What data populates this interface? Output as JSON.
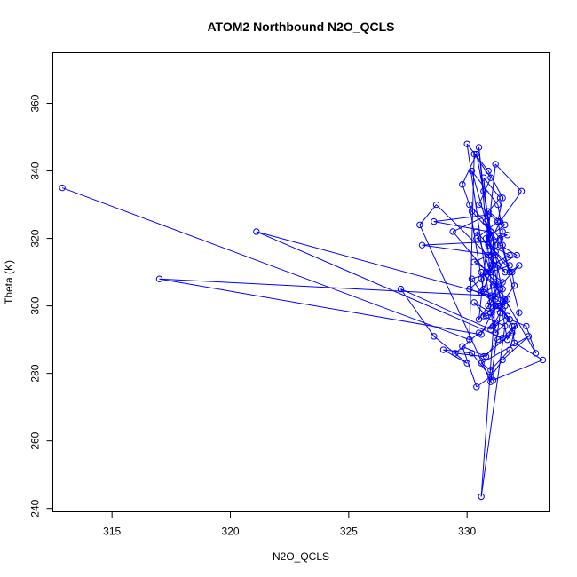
{
  "chart_data": {
    "type": "line",
    "title": "ATOM2 Northbound N2O_QCLS",
    "xlabel": "N2O_QCLS",
    "ylabel": "Theta (K)",
    "xlim": [
      312.5,
      333.5
    ],
    "ylim": [
      239,
      375
    ],
    "xticks": [
      315,
      320,
      325,
      330
    ],
    "yticks": [
      240,
      260,
      280,
      300,
      320,
      340,
      360
    ],
    "series": [
      {
        "color": "#0000ff",
        "marker": "open-circle",
        "x": [
          312.9,
          330.1,
          330.3,
          331.0,
          330.5,
          331.3,
          331.5,
          331.8,
          332.2,
          331.0,
          317.0,
          330.6,
          331.2,
          331.8,
          332.5,
          332.9,
          331.6,
          321.1,
          331.5,
          332.0,
          331.7,
          330.8,
          331.2,
          331.0,
          330.4,
          331.9,
          332.0,
          331.4,
          331.8,
          331.2,
          330.5,
          330.7,
          331.0,
          330.2,
          331.3,
          331.5,
          330.9,
          331.1,
          330.7,
          331.6,
          330.4,
          329.8,
          330.2,
          331.0,
          331.4,
          332.1,
          330.8,
          331.5,
          331.0,
          330.5,
          331.2,
          332.3,
          331.4,
          330.9,
          331.8,
          330.2,
          330.6,
          331.3,
          331.7,
          331.1,
          330.0,
          330.9,
          331.5,
          331.3,
          330.4,
          331.8,
          331.0,
          330.6,
          330.1,
          331.2,
          330.7,
          331.4,
          330.9,
          331.6,
          330.8,
          331.2,
          330.3,
          331.0,
          331.5,
          330.7,
          330.1,
          331.4,
          332.2,
          331.8,
          331.0,
          330.6,
          332.6,
          331.5,
          331.0,
          330.4,
          329.8,
          330.8,
          331.3,
          331.9,
          330.7,
          329.5,
          330.5,
          331.2,
          330.9,
          331.4,
          330.6,
          331.1,
          331.7,
          331.0,
          330.3,
          330.8,
          331.5,
          331.9,
          332.0,
          333.2,
          331.1,
          330.2,
          329.0,
          330.0,
          328.6,
          327.2,
          331.0,
          331.4,
          331.0,
          328.0,
          328.7,
          331.6,
          331.2,
          328.1,
          330.9,
          331.7,
          328.6,
          330.9,
          329.4,
          331.2,
          331.5,
          331.2,
          330.7,
          331.6,
          330.6,
          331.3
        ],
        "y": [
          335.0,
          290.0,
          345.0,
          338.0,
          330.0,
          325.0,
          318.0,
          310.0,
          312.0,
          303.0,
          308.0,
          291.5,
          300.0,
          296.0,
          294.0,
          286.0,
          302.0,
          322.0,
          290.5,
          294.0,
          290.0,
          325.0,
          318.0,
          310.0,
          322.0,
          310.0,
          306.0,
          300.0,
          296.0,
          292.0,
          347.0,
          334.0,
          320.0,
          340.0,
          330.0,
          322.0,
          315.0,
          312.0,
          305.0,
          300.0,
          345.0,
          336.0,
          328.0,
          322.0,
          318.0,
          315.0,
          310.0,
          305.0,
          301.0,
          296.0,
          342.0,
          334.0,
          325.0,
          318.0,
          312.0,
          308.0,
          304.0,
          300.0,
          297.0,
          294.0,
          348.0,
          340.0,
          332.0,
          325.0,
          320.0,
          315.0,
          312.0,
          308.0,
          305.0,
          302.0,
          338.0,
          332.0,
          328.0,
          324.0,
          320.0,
          316.0,
          313.0,
          310.0,
          307.0,
          304.0,
          330.0,
          320.0,
          298.0,
          287.0,
          281.0,
          283.0,
          291.0,
          284.0,
          279.0,
          276.0,
          288.0,
          285.0,
          290.0,
          292.0,
          285.0,
          286.0,
          292.0,
          295.0,
          300.0,
          305.0,
          310.0,
          306.0,
          302.0,
          298.0,
          301.0,
          297.0,
          299.0,
          294.0,
          289.0,
          284.0,
          278.0,
          286.0,
          287.0,
          283.0,
          291.0,
          305.0,
          293.0,
          298.0,
          277.5,
          324.0,
          330.0,
          310.0,
          315.0,
          318.0,
          319.0,
          321.0,
          325.0,
          327.0,
          322.0,
          307.0,
          301.0,
          300.0,
          297.0,
          294.0,
          243.5,
          312.0
        ]
      }
    ]
  }
}
